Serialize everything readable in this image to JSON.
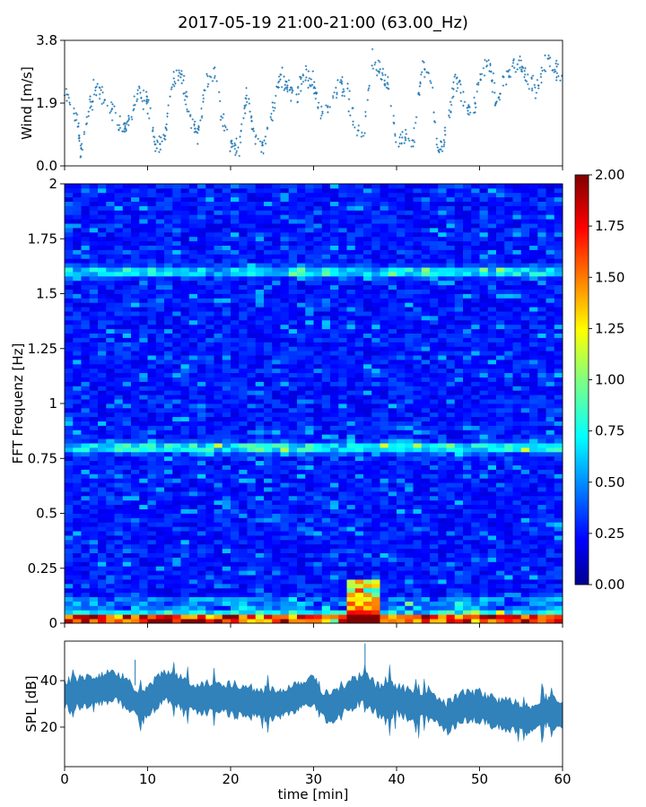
{
  "title": "2017-05-19 21:00-21:00 (63.00_Hz)",
  "chart_data": [
    {
      "type": "scatter",
      "ylabel": "Wind [m/s]",
      "xlim": [
        0,
        60
      ],
      "ylim": [
        0,
        3.8
      ],
      "yticks": [
        "0.0",
        "1.9",
        "3.8"
      ],
      "color": "#1f77b4",
      "x": [
        0,
        1,
        2,
        3,
        4,
        5,
        6,
        7,
        8,
        9,
        10,
        11,
        12,
        13,
        14,
        15,
        16,
        17,
        18,
        19,
        20,
        21,
        22,
        23,
        24,
        25,
        26,
        27,
        28,
        29,
        30,
        31,
        32,
        33,
        34,
        35,
        36,
        37,
        38,
        39,
        40,
        41,
        42,
        43,
        44,
        45,
        46,
        47,
        48,
        49,
        50,
        51,
        52,
        53,
        54,
        55,
        56,
        57,
        58,
        59,
        60
      ],
      "y": [
        2.3,
        2.0,
        0.5,
        1.8,
        2.5,
        2.0,
        1.6,
        1.0,
        1.5,
        2.4,
        1.9,
        0.6,
        0.8,
        2.6,
        2.8,
        1.6,
        0.9,
        2.5,
        2.8,
        1.5,
        0.6,
        0.5,
        2.2,
        0.7,
        0.6,
        1.5,
        2.7,
        2.3,
        2.2,
        2.8,
        2.4,
        1.6,
        1.8,
        2.5,
        2.3,
        1.2,
        0.8,
        3.2,
        3.0,
        2.3,
        0.6,
        0.9,
        0.7,
        2.8,
        2.9,
        0.5,
        0.9,
        2.6,
        2.1,
        1.5,
        2.6,
        3.2,
        2.0,
        2.6,
        3.0,
        3.1,
        2.5,
        2.4,
        3.2,
        2.9,
        2.6
      ]
    },
    {
      "type": "heatmap",
      "ylabel": "FFT Frequenz [Hz]",
      "ylim": [
        0,
        2
      ],
      "yticks": [
        "0",
        "0.25",
        "0.5",
        "0.75",
        "1",
        "1.25",
        "1.5",
        "1.75",
        "2"
      ],
      "colorbar": {
        "min": 0,
        "max": 2,
        "ticks": [
          "0.00",
          "0.25",
          "0.50",
          "0.75",
          "1.00",
          "1.25",
          "1.50",
          "1.75",
          "2.00"
        ],
        "colormap": "jet"
      },
      "features": [
        {
          "freq": 0.8,
          "level": 0.75
        },
        {
          "freq": 1.6,
          "level": 0.65
        },
        {
          "freq": 0.02,
          "level": 2.0
        },
        {
          "freq_range": [
            0.0,
            0.2
          ],
          "time_range": [
            34,
            38
          ],
          "level": 1.1
        }
      ]
    },
    {
      "type": "area",
      "ylabel": "SPL [dB]",
      "xlabel": "time [min]",
      "xlim": [
        0,
        60
      ],
      "ylim": [
        3,
        57
      ],
      "yticks": [
        "20",
        "40"
      ],
      "xticks": [
        "0",
        "10",
        "20",
        "30",
        "40",
        "50",
        "60"
      ],
      "color": "#1f77b4",
      "x": [
        0,
        2,
        4,
        6,
        8,
        9,
        10,
        12,
        14,
        16,
        18,
        20,
        22,
        24,
        26,
        28,
        30,
        31,
        32,
        34,
        36,
        38,
        40,
        42,
        44,
        46,
        48,
        50,
        52,
        54,
        56,
        58,
        60
      ],
      "y": [
        34,
        35,
        36,
        38,
        33,
        29,
        31,
        38,
        35,
        32,
        33,
        32,
        31,
        30,
        30,
        33,
        36,
        30,
        28,
        33,
        37,
        31,
        32,
        29,
        30,
        24,
        29,
        29,
        26,
        25,
        23,
        27,
        25
      ]
    }
  ]
}
